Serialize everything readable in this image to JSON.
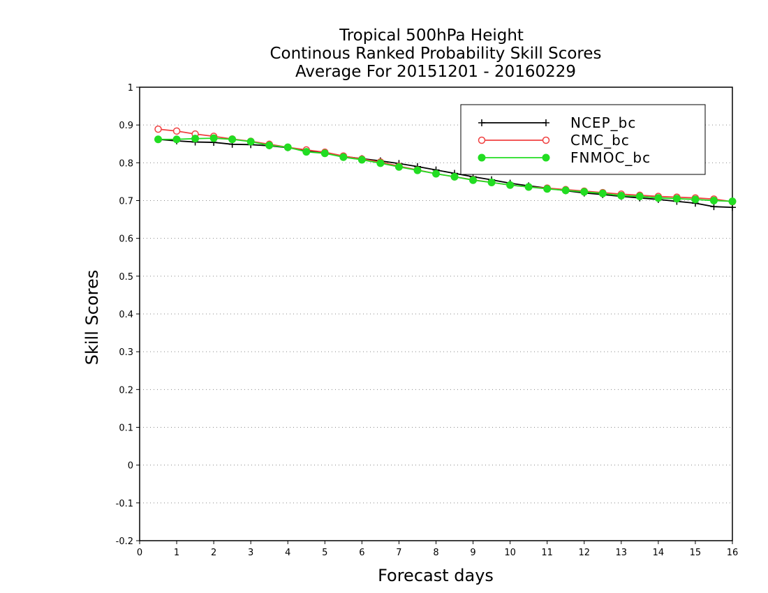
{
  "chart_data": {
    "type": "line",
    "title": [
      "Tropical 500hPa Height",
      "Continous Ranked Probability Skill Scores",
      "Average For 20151201 - 20160229"
    ],
    "xlabel": "Forecast days",
    "ylabel": "Skill Scores",
    "xlim": [
      0,
      16
    ],
    "ylim": [
      -0.2,
      1
    ],
    "x_ticks": [
      0,
      1,
      2,
      3,
      4,
      5,
      6,
      7,
      8,
      9,
      10,
      11,
      12,
      13,
      14,
      15,
      16
    ],
    "y_ticks": [
      -0.2,
      -0.1,
      0,
      0.1,
      0.2,
      0.3,
      0.4,
      0.5,
      0.6,
      0.7,
      0.8,
      0.9,
      1
    ],
    "y_tick_labels": [
      "-0.2",
      "-0.1",
      "0",
      "0.1",
      "0.2",
      "0.3",
      "0.4",
      "0.5",
      "0.6",
      "0.7",
      "0.8",
      "0.9",
      "1"
    ],
    "grid": "horizontal dotted",
    "legend_position": "top-right",
    "x": [
      0.5,
      1,
      1.5,
      2,
      2.5,
      3,
      3.5,
      4,
      4.5,
      5,
      5.5,
      6,
      6.5,
      7,
      7.5,
      8,
      8.5,
      9,
      9.5,
      10,
      10.5,
      11,
      11.5,
      12,
      12.5,
      13,
      13.5,
      14,
      14.5,
      15,
      15.5,
      16
    ],
    "series": [
      {
        "name": "NCEP_bc",
        "color": "#000000",
        "marker": "plus",
        "values": [
          0.862,
          0.858,
          0.855,
          0.854,
          0.849,
          0.848,
          0.845,
          0.84,
          0.832,
          0.825,
          0.817,
          0.811,
          0.805,
          0.798,
          0.79,
          0.781,
          0.772,
          0.763,
          0.755,
          0.746,
          0.739,
          0.733,
          0.726,
          0.72,
          0.716,
          0.711,
          0.707,
          0.703,
          0.698,
          0.693,
          0.684,
          0.682
        ]
      },
      {
        "name": "CMC_bc",
        "color": "#f04040",
        "marker": "open-circle",
        "values": [
          0.889,
          0.884,
          0.876,
          0.87,
          0.863,
          0.857,
          0.849,
          0.841,
          0.834,
          0.828,
          0.818,
          0.81,
          0.802,
          0.791,
          0.781,
          0.771,
          0.763,
          0.755,
          0.748,
          0.741,
          0.736,
          0.733,
          0.729,
          0.725,
          0.721,
          0.717,
          0.714,
          0.711,
          0.709,
          0.707,
          0.704,
          0.697
        ]
      },
      {
        "name": "FNMOC_bc",
        "color": "#22dd22",
        "marker": "filled-circle",
        "values": [
          0.862,
          0.862,
          0.864,
          0.865,
          0.862,
          0.856,
          0.846,
          0.841,
          0.829,
          0.825,
          0.815,
          0.808,
          0.799,
          0.789,
          0.78,
          0.771,
          0.763,
          0.754,
          0.748,
          0.741,
          0.736,
          0.731,
          0.727,
          0.723,
          0.719,
          0.713,
          0.711,
          0.707,
          0.705,
          0.703,
          0.7,
          0.698
        ]
      }
    ]
  }
}
